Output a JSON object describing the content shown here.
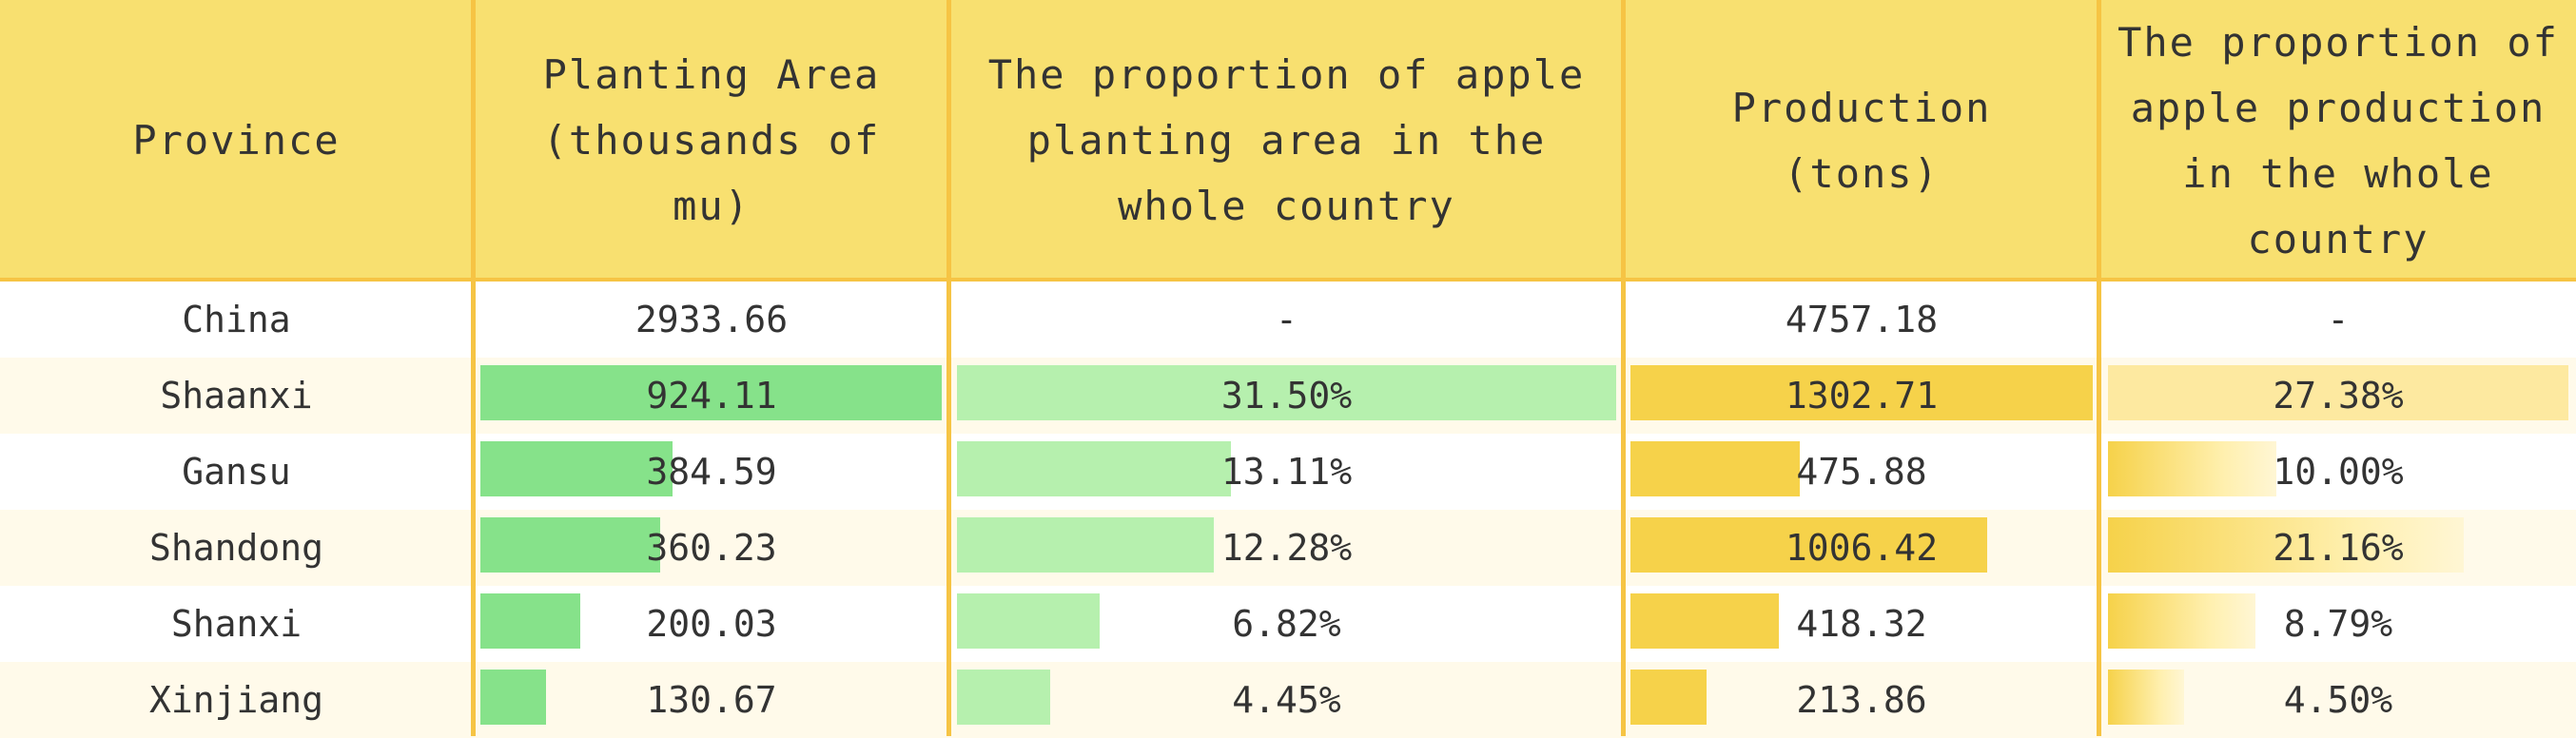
{
  "chart_data": {
    "type": "table",
    "columns": [
      "Province",
      "Planting Area (thousands of mu)",
      "The proportion of apple planting area in the whole country",
      "Production (tons)",
      "The proportion of apple production in the whole country"
    ],
    "rows": [
      {
        "province": "China",
        "area": "2933.66",
        "area_share": "-",
        "production": "4757.18",
        "production_share": "-"
      },
      {
        "province": "Shaanxi",
        "area": "924.11",
        "area_share": "31.50%",
        "production": "1302.71",
        "production_share": "27.38%"
      },
      {
        "province": "Gansu",
        "area": "384.59",
        "area_share": "13.11%",
        "production": "475.88",
        "production_share": "10.00%"
      },
      {
        "province": "Shandong",
        "area": "360.23",
        "area_share": "12.28%",
        "production": "1006.42",
        "production_share": "21.16%"
      },
      {
        "province": "Shanxi",
        "area": "200.03",
        "area_share": "6.82%",
        "production": "418.32",
        "production_share": "8.79%"
      },
      {
        "province": "Xinjiang",
        "area": "130.67",
        "area_share": "4.45%",
        "production": "213.86",
        "production_share": "4.50%"
      }
    ],
    "bar_columns": [
      "area",
      "area_share",
      "production",
      "production_share"
    ],
    "colors": {
      "header_bg": "#f8e070",
      "border": "#f6c444",
      "area_bar": "#86e28a",
      "area_share_bar": "#b6f0ae",
      "production_bar": "#f6d24a",
      "production_share_bar": "#fde9a0",
      "alt_row_bg": "#fffaea"
    }
  }
}
